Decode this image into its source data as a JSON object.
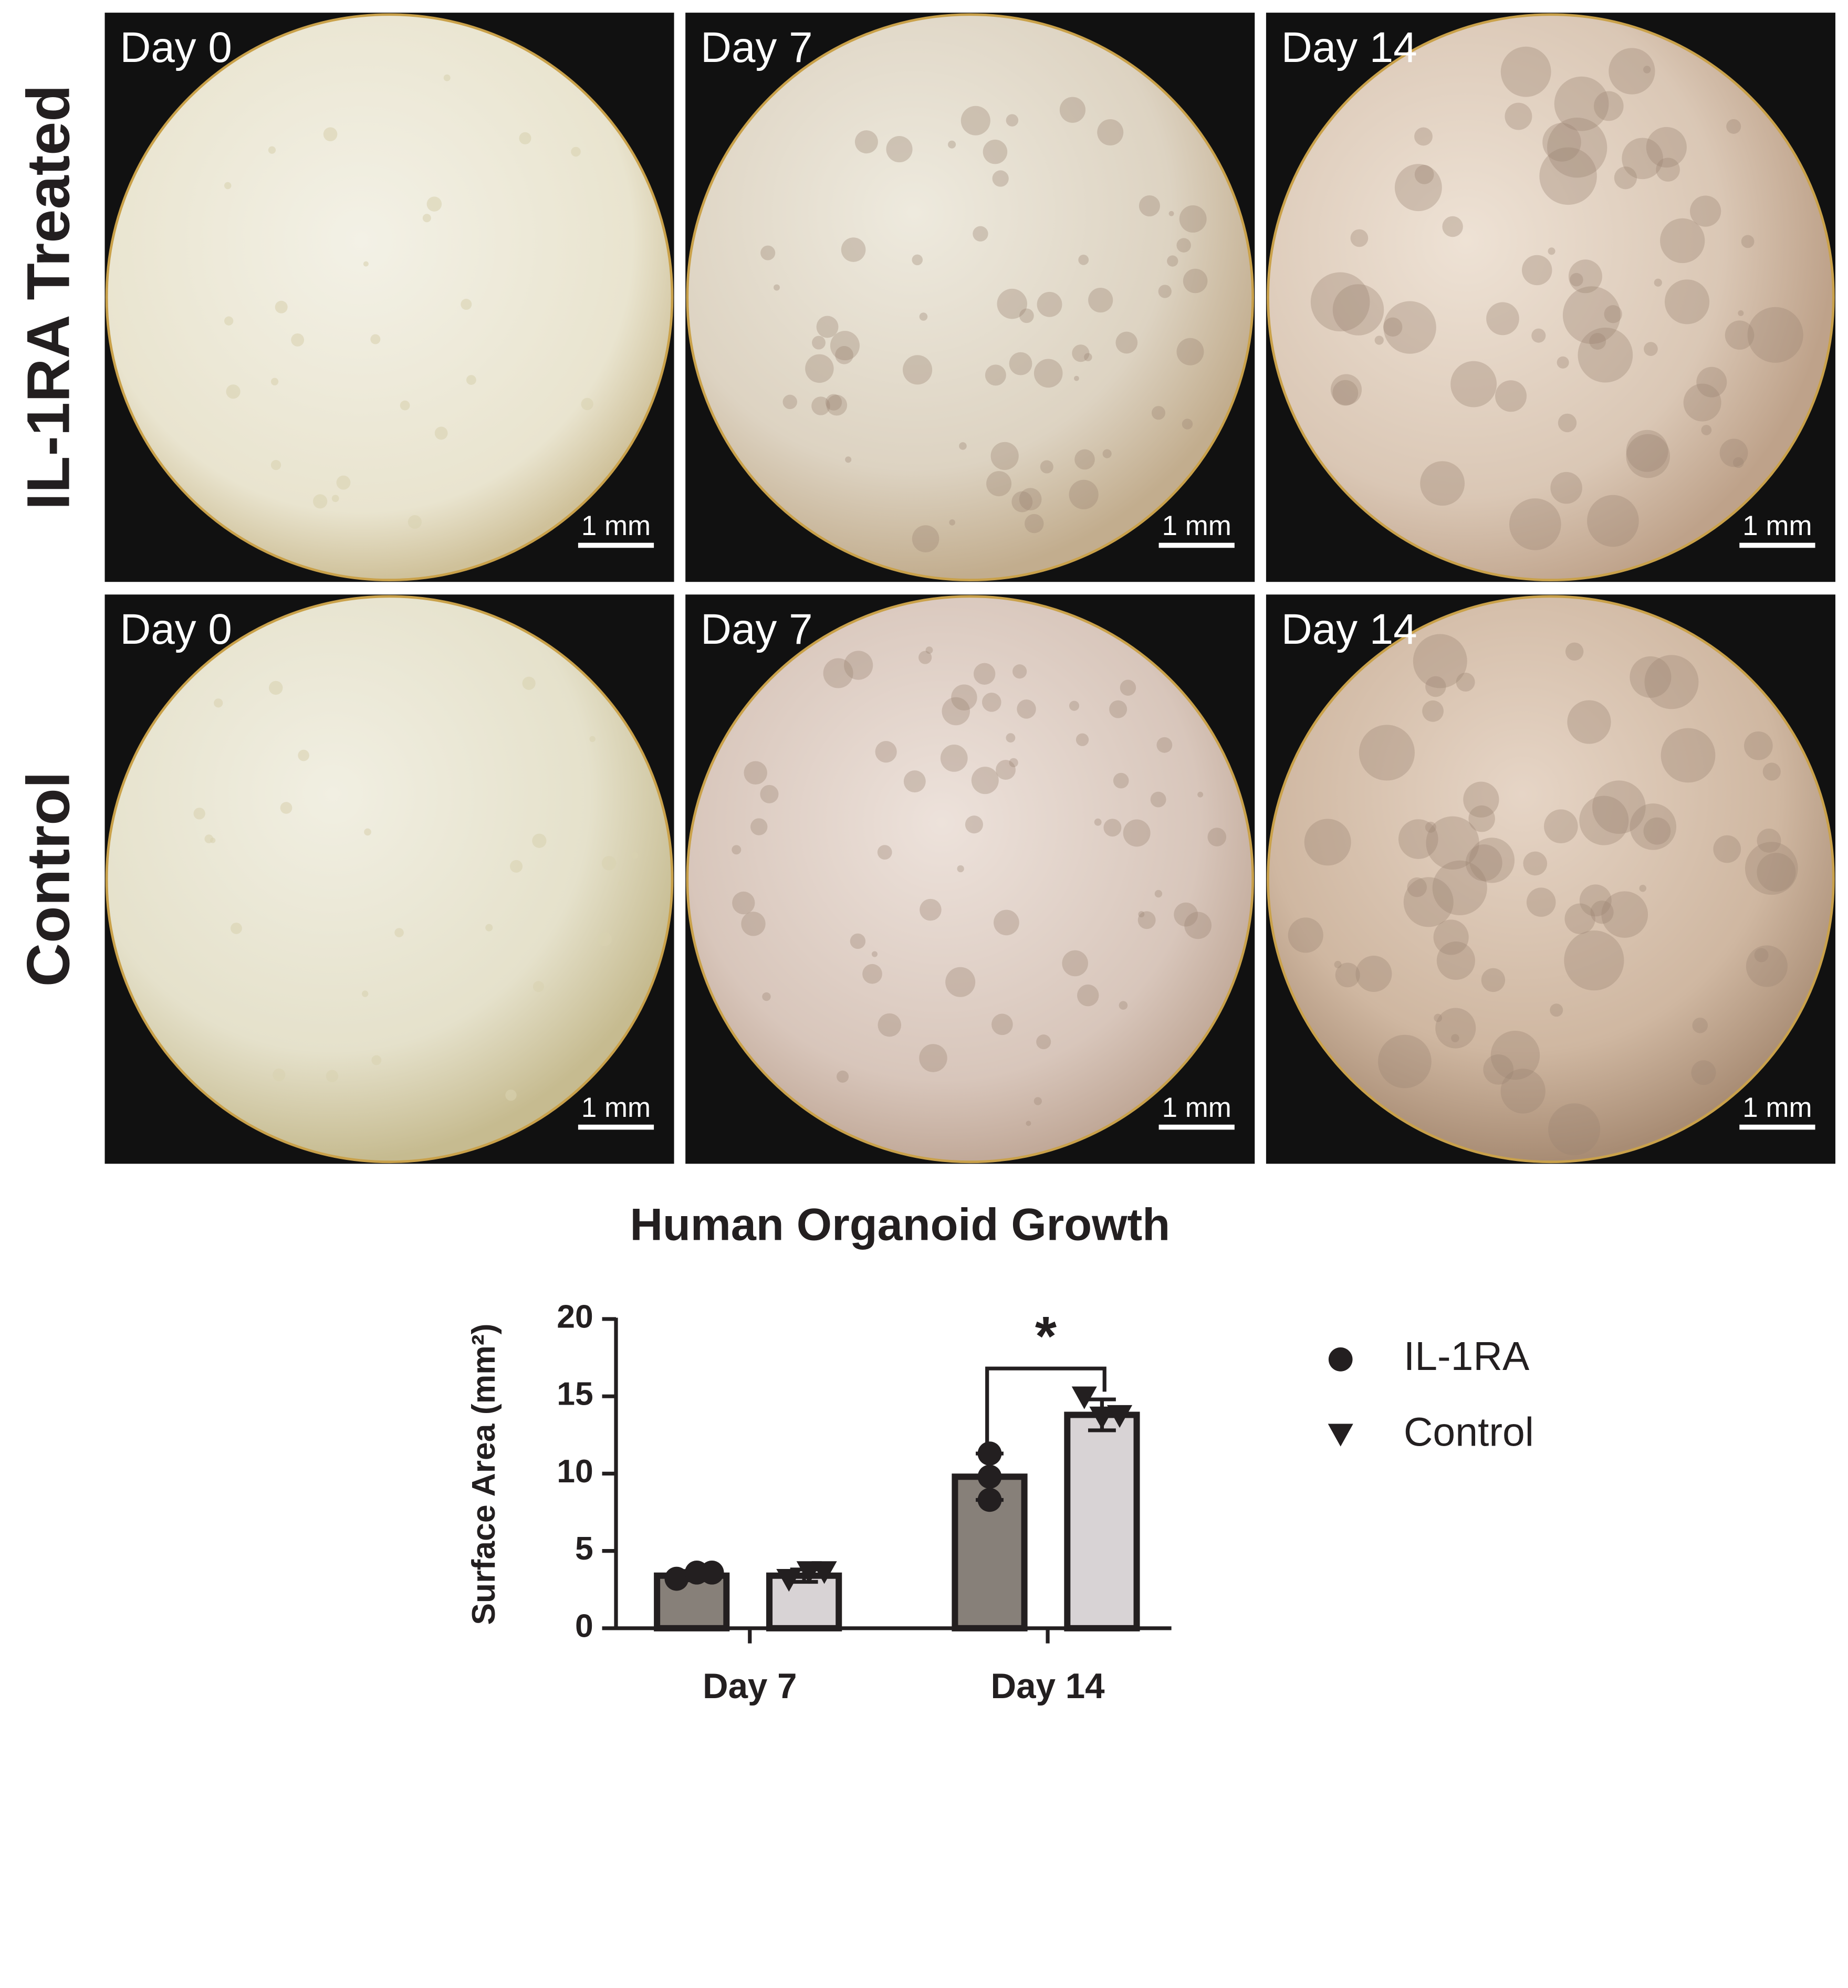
{
  "panels": {
    "row_labels": [
      "IL-1RA Treated",
      "Control"
    ],
    "column_labels": [
      "Day 0",
      "Day 7",
      "Day 14"
    ],
    "scale_bar": "1 mm"
  },
  "chart_data": {
    "type": "bar",
    "title": "Human Organoid Growth",
    "y_label": "Surface Area (mm²)",
    "categories": [
      "Day 7",
      "Day 14"
    ],
    "series": [
      {
        "name": "IL-1RA",
        "color": "#878079",
        "marker": "circle",
        "values": [
          3.4,
          9.8
        ],
        "errors": [
          0.3,
          1.5
        ],
        "points": [
          [
            3.2,
            3.6,
            3.6
          ],
          [
            11.3,
            9.8,
            8.3
          ]
        ]
      },
      {
        "name": "Control",
        "color": "#d8d3d5",
        "marker": "triangle",
        "values": [
          3.4,
          13.8
        ],
        "errors": [
          0.4,
          1.0
        ],
        "points": [
          [
            3.1,
            3.6,
            3.6
          ],
          [
            14.9,
            13.6,
            13.7
          ]
        ]
      }
    ],
    "annotations": [
      "*"
    ],
    "ylim": [
      0,
      20
    ],
    "yticks": [
      0,
      5,
      10,
      15,
      20
    ],
    "legend": "right"
  }
}
